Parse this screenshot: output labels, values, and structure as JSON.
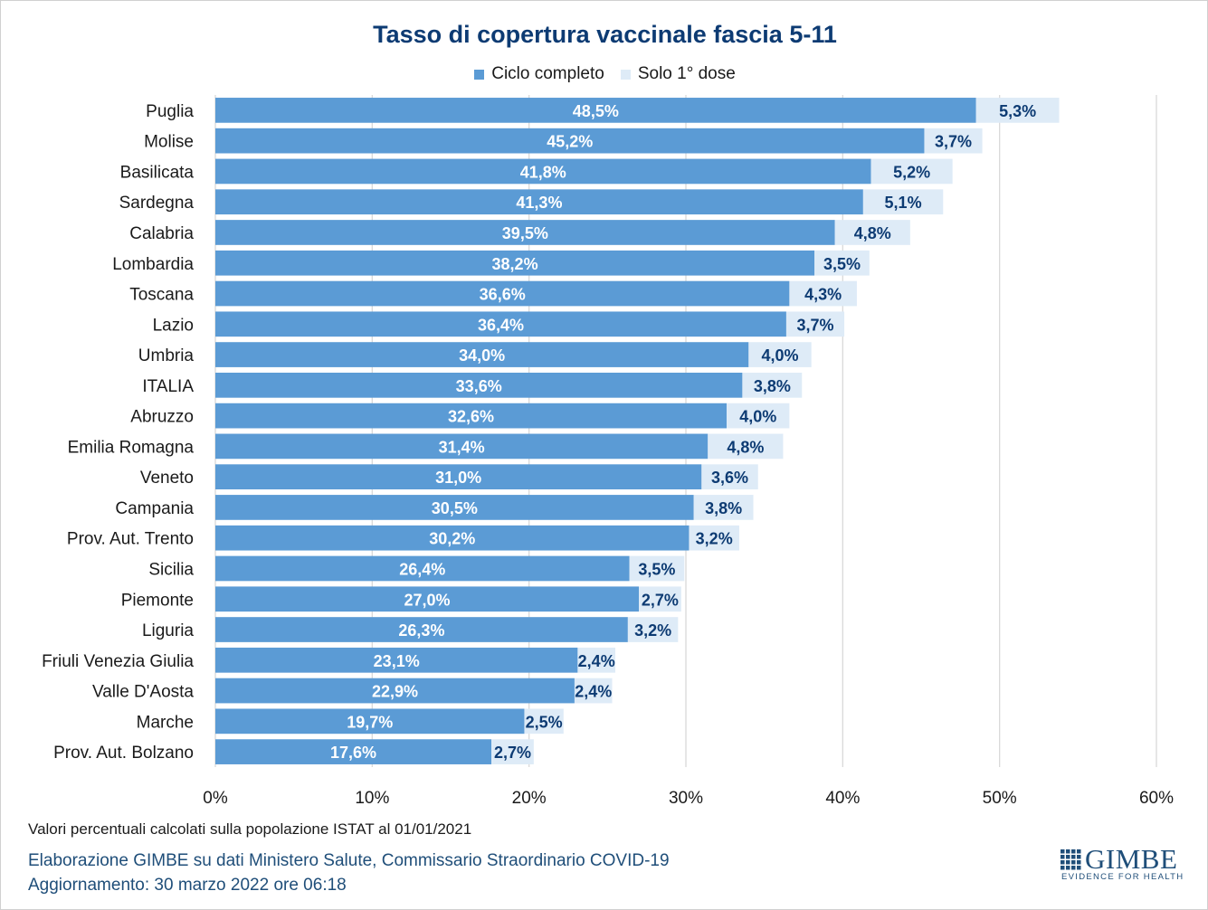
{
  "chart_data": {
    "type": "bar",
    "orientation": "horizontal",
    "stacked": true,
    "title": "Tasso di copertura vaccinale fascia 5-11",
    "categories": [
      "Puglia",
      "Molise",
      "Basilicata",
      "Sardegna",
      "Calabria",
      "Lombardia",
      "Toscana",
      "Lazio",
      "Umbria",
      "ITALIA",
      "Abruzzo",
      "Emilia Romagna",
      "Veneto",
      "Campania",
      "Prov. Aut. Trento",
      "Sicilia",
      "Piemonte",
      "Liguria",
      "Friuli Venezia Giulia",
      "Valle D'Aosta",
      "Marche",
      "Prov. Aut. Bolzano"
    ],
    "series": [
      {
        "name": "Ciclo completo",
        "color": "#5b9bd5",
        "values": [
          48.5,
          45.2,
          41.8,
          41.3,
          39.5,
          38.2,
          36.6,
          36.4,
          34.0,
          33.6,
          32.6,
          31.4,
          31.0,
          30.5,
          30.2,
          26.4,
          27.0,
          26.3,
          23.1,
          22.9,
          19.7,
          17.6
        ],
        "labels": [
          "48,5%",
          "45,2%",
          "41,8%",
          "41,3%",
          "39,5%",
          "38,2%",
          "36,6%",
          "36,4%",
          "34,0%",
          "33,6%",
          "32,6%",
          "31,4%",
          "31,0%",
          "30,5%",
          "30,2%",
          "26,4%",
          "27,0%",
          "26,3%",
          "23,1%",
          "22,9%",
          "19,7%",
          "17,6%"
        ]
      },
      {
        "name": "Solo 1° dose",
        "color": "#deebf7",
        "values": [
          5.3,
          3.7,
          5.2,
          5.1,
          4.8,
          3.5,
          4.3,
          3.7,
          4.0,
          3.8,
          4.0,
          4.8,
          3.6,
          3.8,
          3.2,
          3.5,
          2.7,
          3.2,
          2.4,
          2.4,
          2.5,
          2.7
        ],
        "labels": [
          "5,3%",
          "3,7%",
          "5,2%",
          "5,1%",
          "4,8%",
          "3,5%",
          "4,3%",
          "3,7%",
          "4,0%",
          "3,8%",
          "4,0%",
          "4,8%",
          "3,6%",
          "3,8%",
          "3,2%",
          "3,5%",
          "2,7%",
          "3,2%",
          "2,4%",
          "2,4%",
          "2,5%",
          "2,7%"
        ]
      }
    ],
    "xlim": [
      0,
      60
    ],
    "x_ticks": [
      0,
      10,
      20,
      30,
      40,
      50,
      60
    ],
    "x_tick_labels": [
      "0%",
      "10%",
      "20%",
      "30%",
      "40%",
      "50%",
      "60%"
    ],
    "grid": "vertical",
    "legend_position": "top",
    "value_label_color": "#0d3b73",
    "gridline_color": "#d9d9d9"
  },
  "footer": {
    "note": "Valori percentuali calcolati sulla popolazione ISTAT al 01/01/2021",
    "source": "Elaborazione GIMBE su dati Ministero Salute, Commissario Straordinario COVID-19",
    "updated": "Aggiornamento: 30 marzo 2022 ore 06:18"
  },
  "brand": {
    "name": "GIMBE",
    "tagline": "EVIDENCE FOR HEALTH",
    "color": "#1f4e79"
  }
}
